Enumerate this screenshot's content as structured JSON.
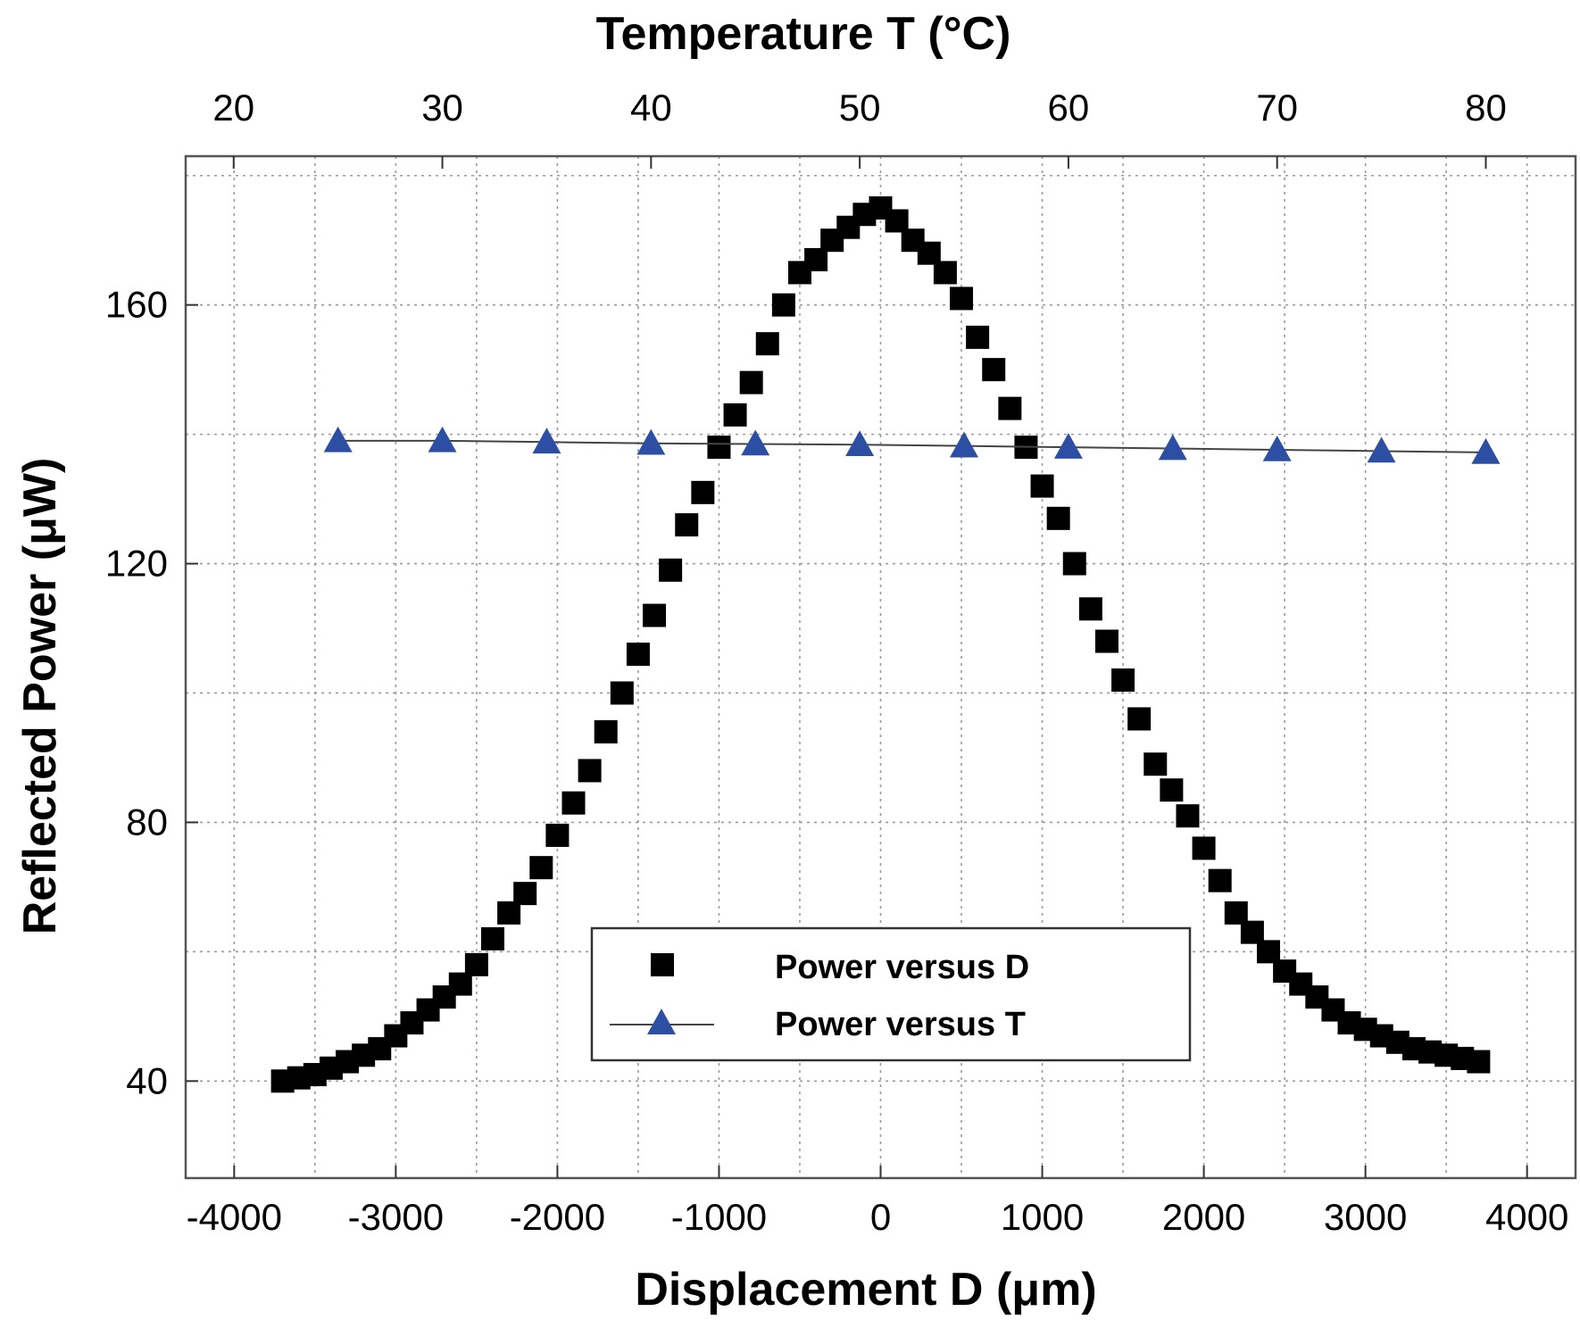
{
  "chart_data": {
    "type": "scatter",
    "title": "",
    "xlabel": "Displacement D",
    "xlabel_unit": "(μm)",
    "x2label": "Temperature  T",
    "x2label_unit": "(°C)",
    "ylabel": "Reflected Power",
    "ylabel_unit": "(μW)",
    "xlim": [
      -4300,
      4300
    ],
    "x2lim": [
      17.7,
      84.3
    ],
    "ylim": [
      25,
      183
    ],
    "x_ticks": [
      -4000,
      -3000,
      -2000,
      -1000,
      0,
      1000,
      2000,
      3000,
      4000
    ],
    "x_tick_labels": [
      "-4000",
      "-3000",
      "-2000",
      "-1000",
      "0",
      "1000",
      "2000",
      "3000",
      "4000"
    ],
    "x2_ticks": [
      20,
      30,
      40,
      50,
      60,
      70,
      80
    ],
    "x2_tick_labels": [
      "20",
      "30",
      "40",
      "50",
      "60",
      "70",
      "80"
    ],
    "y_ticks": [
      40,
      80,
      120,
      160
    ],
    "y_tick_labels": [
      "40",
      "80",
      "120",
      "160"
    ],
    "grid": true,
    "legend_position": "bottom-center",
    "series": [
      {
        "name": "Power versus D",
        "axis": "bottom",
        "marker": "square",
        "color": "#000000",
        "line": false,
        "x": [
          -3700,
          -3600,
          -3500,
          -3400,
          -3300,
          -3200,
          -3100,
          -3000,
          -2900,
          -2800,
          -2700,
          -2600,
          -2500,
          -2400,
          -2300,
          -2200,
          -2100,
          -2000,
          -1900,
          -1800,
          -1700,
          -1600,
          -1500,
          -1400,
          -1300,
          -1200,
          -1100,
          -1000,
          -900,
          -800,
          -700,
          -600,
          -500,
          -400,
          -300,
          -200,
          -100,
          0,
          100,
          200,
          300,
          400,
          500,
          600,
          700,
          800,
          900,
          1000,
          1100,
          1200,
          1300,
          1400,
          1500,
          1600,
          1700,
          1800,
          1900,
          2000,
          2100,
          2200,
          2300,
          2400,
          2500,
          2600,
          2700,
          2800,
          2900,
          3000,
          3100,
          3200,
          3300,
          3400,
          3500,
          3600,
          3700
        ],
        "y": [
          40,
          40.5,
          41,
          42,
          43,
          44,
          45,
          47,
          49,
          51,
          53,
          55,
          58,
          62,
          66,
          69,
          73,
          78,
          83,
          88,
          94,
          100,
          106,
          112,
          119,
          126,
          131,
          138,
          143,
          148,
          154,
          160,
          165,
          167,
          170,
          172,
          174,
          175,
          173,
          170,
          168,
          165,
          161,
          155,
          150,
          144,
          138,
          132,
          127,
          120,
          113,
          108,
          102,
          96,
          89,
          85,
          81,
          76,
          71,
          66,
          63,
          60,
          57,
          55,
          53,
          51,
          49,
          48,
          47,
          46,
          45,
          44.5,
          44,
          43.5,
          43
        ]
      },
      {
        "name": "Power versus T",
        "axis": "top",
        "marker": "triangle",
        "color": "#2d4fa3",
        "line": true,
        "x": [
          25,
          30,
          35,
          40,
          45,
          50,
          55,
          60,
          65,
          70,
          75,
          80
        ],
        "y": [
          139,
          139,
          138.8,
          138.6,
          138.5,
          138.4,
          138.2,
          138,
          137.8,
          137.6,
          137.4,
          137.2
        ]
      }
    ]
  }
}
